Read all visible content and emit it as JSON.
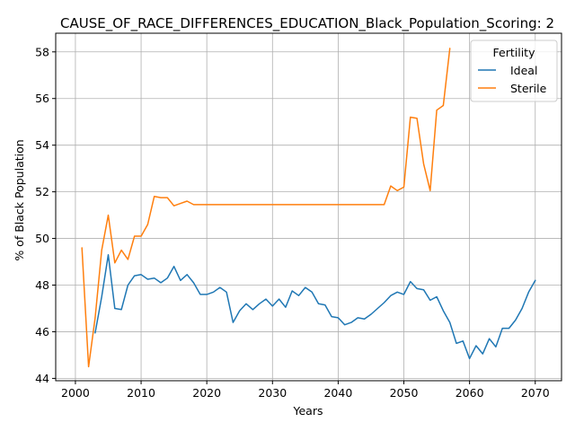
{
  "chart_data": {
    "type": "line",
    "title": "CAUSE_OF_RACE_DIFFERENCES_EDUCATION_Black_Population_Scoring: 2",
    "xlabel": "Years",
    "ylabel": "% of Black Population",
    "xlim": [
      1997,
      2074
    ],
    "ylim": [
      43.9,
      58.8
    ],
    "xticks": [
      2000,
      2010,
      2020,
      2030,
      2040,
      2050,
      2060,
      2070
    ],
    "yticks": [
      44,
      46,
      48,
      50,
      52,
      54,
      56,
      58
    ],
    "grid": true,
    "legend": {
      "title": "Fertility",
      "placement": "top-right"
    },
    "series": [
      {
        "name": "Ideal",
        "color": "#1f77b4",
        "x": [
          2003,
          2004,
          2005,
          2006,
          2007,
          2008,
          2009,
          2010,
          2011,
          2012,
          2013,
          2014,
          2015,
          2016,
          2017,
          2018,
          2019,
          2020,
          2021,
          2022,
          2023,
          2024,
          2025,
          2026,
          2027,
          2028,
          2029,
          2030,
          2031,
          2032,
          2033,
          2034,
          2035,
          2036,
          2037,
          2038,
          2039,
          2040,
          2041,
          2042,
          2043,
          2044,
          2045,
          2046,
          2047,
          2048,
          2049,
          2050,
          2051,
          2052,
          2053,
          2054,
          2055,
          2056,
          2057,
          2058,
          2059,
          2060,
          2061,
          2062,
          2063,
          2064,
          2065,
          2066,
          2067,
          2068,
          2069,
          2070
        ],
        "y": [
          45.95,
          47.5,
          49.3,
          47.0,
          46.95,
          48.0,
          48.4,
          48.45,
          48.25,
          48.3,
          48.1,
          48.3,
          48.8,
          48.2,
          48.45,
          48.1,
          47.6,
          47.6,
          47.7,
          47.9,
          47.7,
          46.4,
          46.9,
          47.2,
          46.95,
          47.2,
          47.4,
          47.1,
          47.4,
          47.05,
          47.75,
          47.55,
          47.9,
          47.7,
          47.2,
          47.15,
          46.65,
          46.6,
          46.3,
          46.4,
          46.6,
          46.55,
          46.75,
          47.0,
          47.25,
          47.55,
          47.7,
          47.6,
          48.15,
          47.85,
          47.8,
          47.35,
          47.5,
          46.9,
          46.4,
          45.5,
          45.6,
          44.85,
          45.4,
          45.05,
          45.7,
          45.35,
          46.15,
          46.15,
          46.5,
          47.0,
          47.7,
          48.2
        ]
      },
      {
        "name": "Sterile",
        "color": "#ff7f0e",
        "x": [
          2001,
          2002,
          2003,
          2004,
          2005,
          2006,
          2007,
          2008,
          2009,
          2010,
          2011,
          2012,
          2013,
          2014,
          2015,
          2016,
          2017,
          2018,
          2019,
          2020,
          2025,
          2030,
          2035,
          2040,
          2045,
          2047,
          2048,
          2049,
          2050,
          2051,
          2052,
          2053,
          2054,
          2055,
          2056,
          2057
        ],
        "y": [
          49.6,
          44.5,
          46.6,
          49.5,
          51.0,
          48.95,
          49.5,
          49.1,
          50.1,
          50.1,
          50.6,
          51.8,
          51.75,
          51.75,
          51.4,
          51.5,
          51.6,
          51.45,
          51.45,
          51.45,
          51.45,
          51.45,
          51.45,
          51.45,
          51.45,
          51.45,
          52.25,
          52.05,
          52.2,
          55.2,
          55.15,
          53.2,
          52.05,
          55.5,
          55.7,
          58.15
        ]
      }
    ]
  }
}
